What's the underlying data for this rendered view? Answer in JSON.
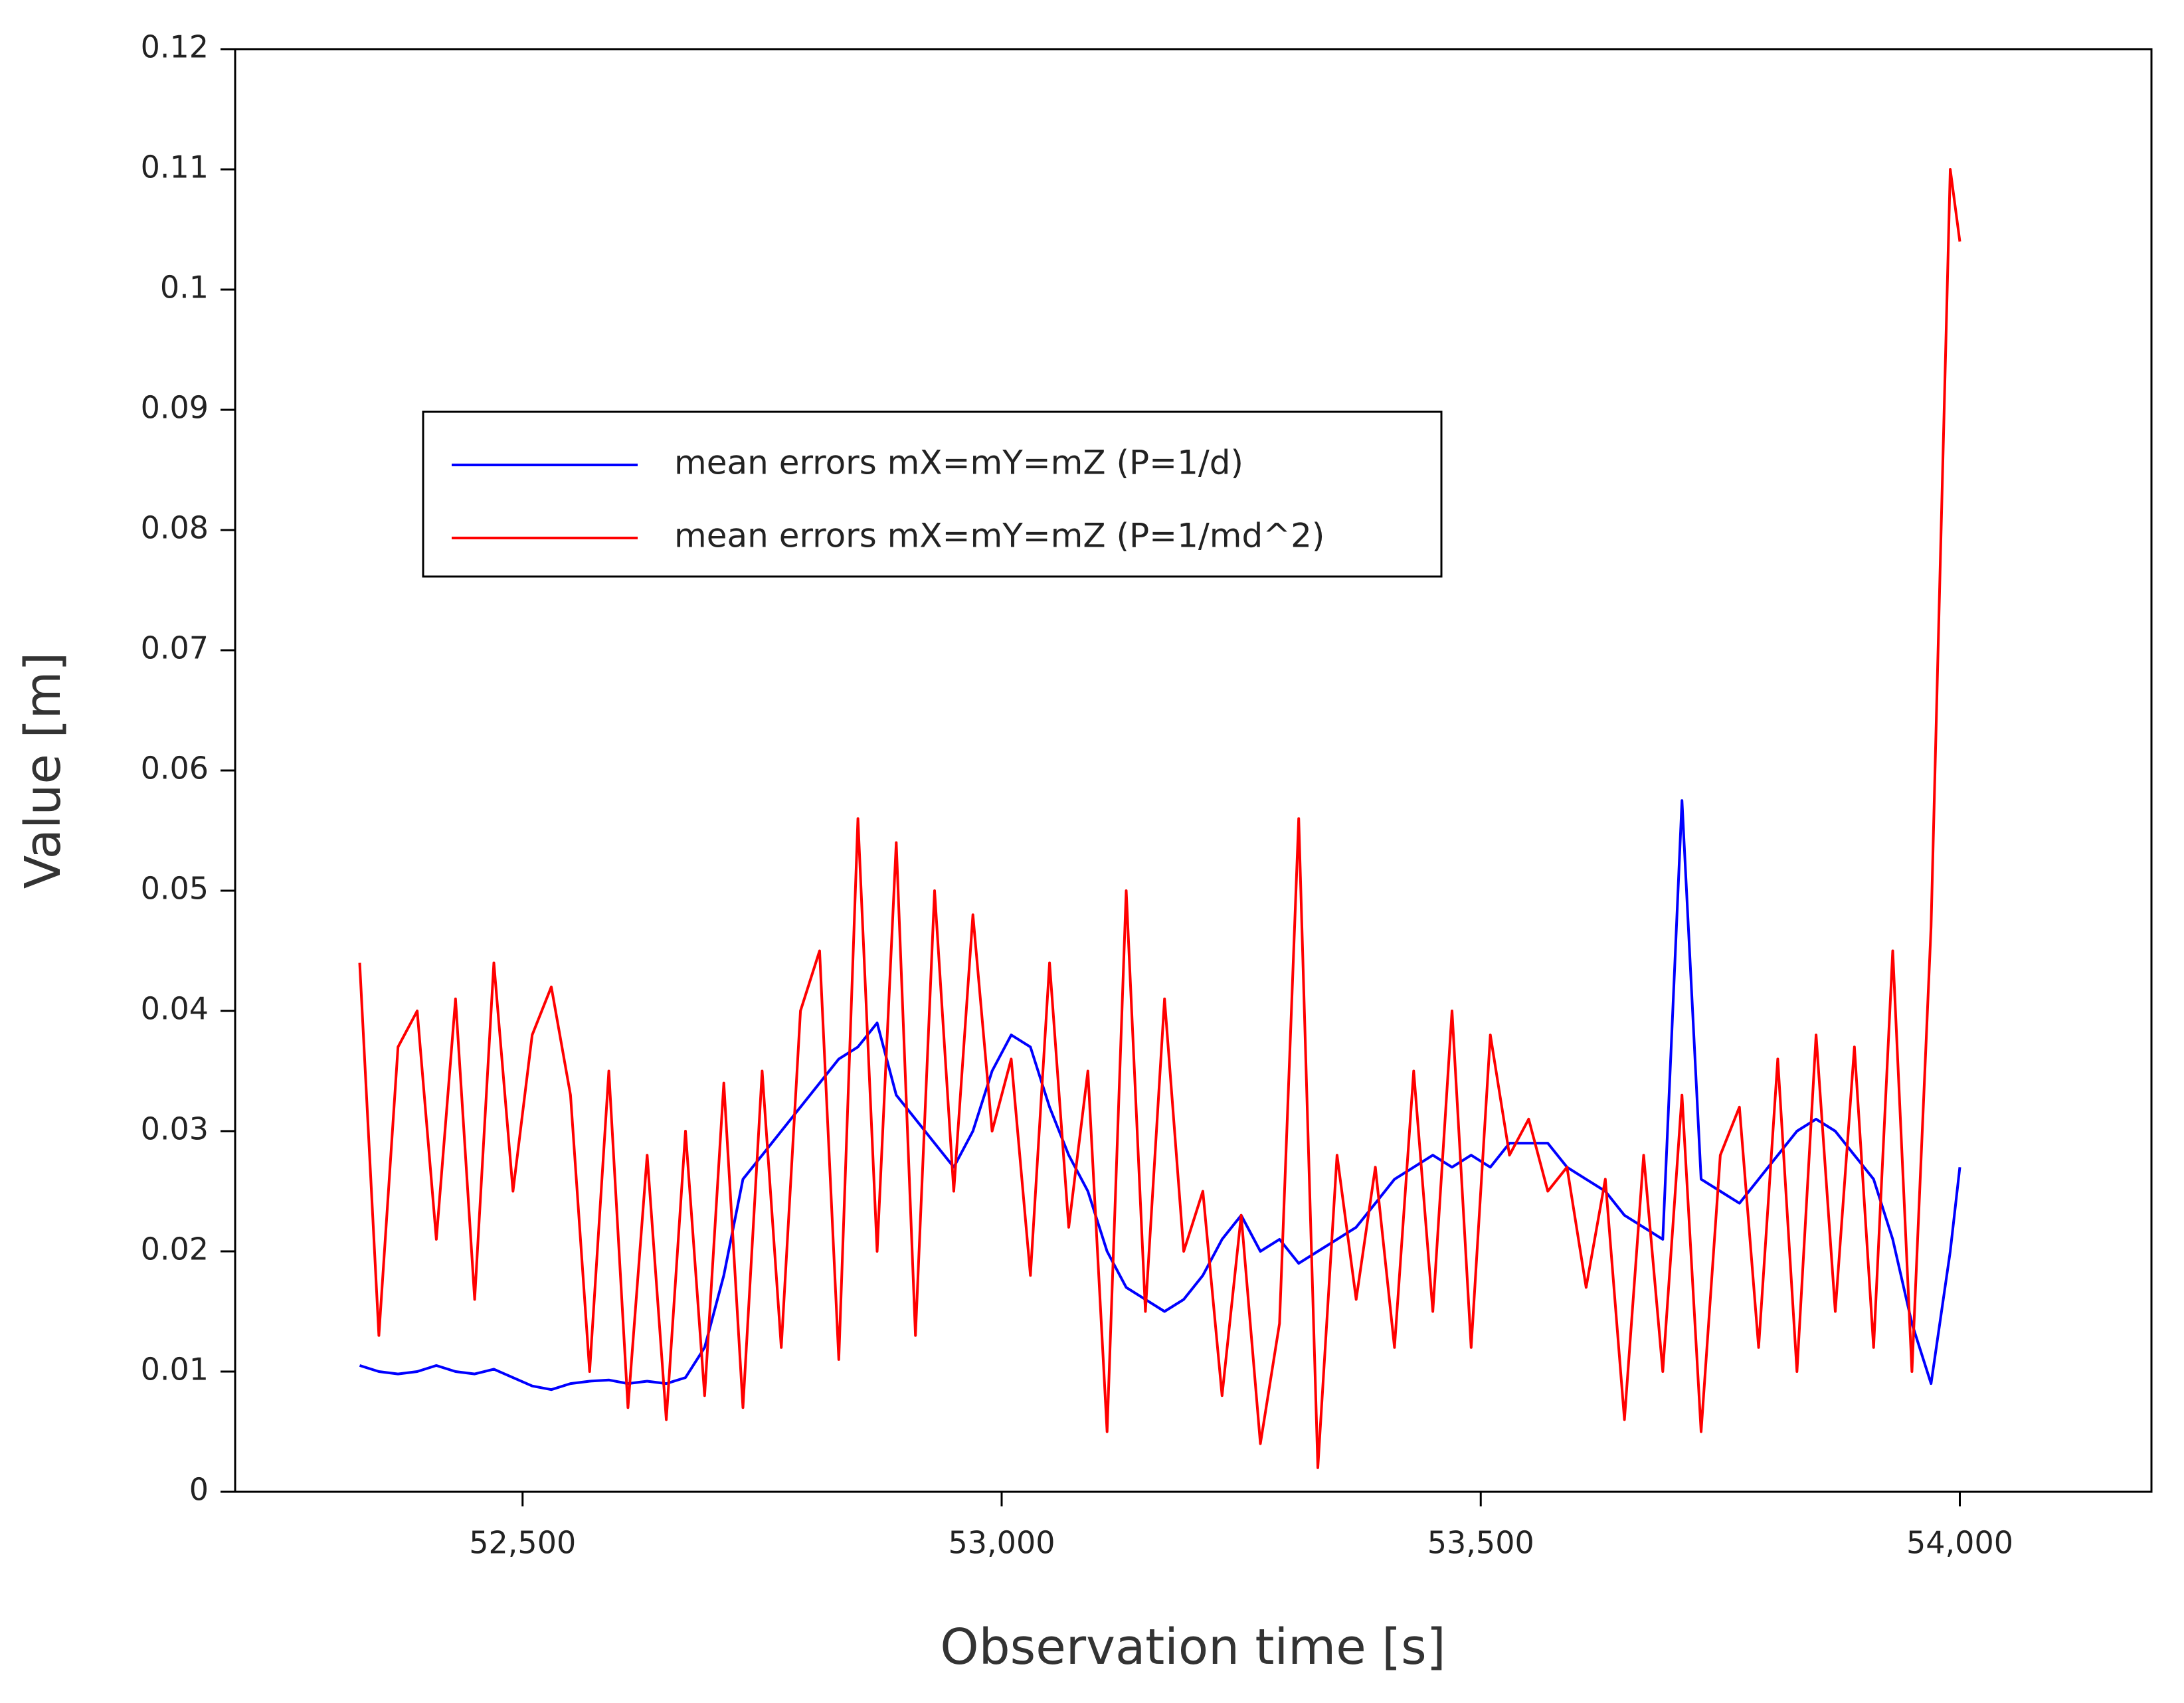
{
  "chart_data": {
    "type": "line",
    "xlabel": "Observation time [s]",
    "ylabel": "Value [m]",
    "x": [
      52330,
      52350,
      52370,
      52390,
      52410,
      52430,
      52450,
      52470,
      52490,
      52510,
      52530,
      52550,
      52570,
      52590,
      52610,
      52630,
      52650,
      52670,
      52690,
      52710,
      52730,
      52750,
      52770,
      52790,
      52810,
      52830,
      52850,
      52870,
      52890,
      52910,
      52930,
      52950,
      52970,
      52990,
      53010,
      53030,
      53050,
      53070,
      53090,
      53110,
      53130,
      53150,
      53170,
      53190,
      53210,
      53230,
      53250,
      53270,
      53290,
      53310,
      53330,
      53350,
      53370,
      53390,
      53410,
      53430,
      53450,
      53470,
      53490,
      53510,
      53530,
      53550,
      53570,
      53590,
      53610,
      53630,
      53650,
      53670,
      53690,
      53710,
      53730,
      53750,
      53770,
      53790,
      53810,
      53830,
      53850,
      53870,
      53890,
      53910,
      53930,
      53950,
      53970,
      53990,
      54000
    ],
    "series": [
      {
        "name": "mean errors mX=mY=mZ (P=1/d)",
        "color": "#0000ff",
        "values": [
          0.0105,
          0.01,
          0.0098,
          0.01,
          0.0105,
          0.01,
          0.0098,
          0.0102,
          0.0095,
          0.0088,
          0.0085,
          0.009,
          0.0092,
          0.0093,
          0.009,
          0.0092,
          0.009,
          0.0095,
          0.012,
          0.018,
          0.026,
          0.028,
          0.03,
          0.032,
          0.034,
          0.036,
          0.037,
          0.039,
          0.033,
          0.031,
          0.029,
          0.027,
          0.03,
          0.035,
          0.038,
          0.037,
          0.032,
          0.028,
          0.025,
          0.02,
          0.017,
          0.016,
          0.015,
          0.016,
          0.018,
          0.021,
          0.023,
          0.02,
          0.021,
          0.019,
          0.02,
          0.021,
          0.022,
          0.024,
          0.026,
          0.027,
          0.028,
          0.027,
          0.028,
          0.027,
          0.029,
          0.029,
          0.029,
          0.027,
          0.026,
          0.025,
          0.023,
          0.022,
          0.021,
          0.0575,
          0.026,
          0.025,
          0.024,
          0.026,
          0.028,
          0.03,
          0.031,
          0.03,
          0.028,
          0.026,
          0.021,
          0.014,
          0.009,
          0.02,
          0.027
        ]
      },
      {
        "name": "mean errors mX=mY=mZ (P=1/md^2)",
        "color": "#ff0000",
        "values": [
          0.044,
          0.013,
          0.037,
          0.04,
          0.021,
          0.041,
          0.016,
          0.044,
          0.025,
          0.038,
          0.042,
          0.033,
          0.01,
          0.035,
          0.007,
          0.028,
          0.006,
          0.03,
          0.008,
          0.034,
          0.007,
          0.035,
          0.012,
          0.04,
          0.045,
          0.011,
          0.056,
          0.02,
          0.054,
          0.013,
          0.05,
          0.025,
          0.048,
          0.03,
          0.036,
          0.018,
          0.044,
          0.022,
          0.035,
          0.005,
          0.05,
          0.015,
          0.041,
          0.02,
          0.025,
          0.008,
          0.023,
          0.004,
          0.014,
          0.056,
          0.002,
          0.028,
          0.016,
          0.027,
          0.012,
          0.035,
          0.015,
          0.04,
          0.012,
          0.038,
          0.028,
          0.031,
          0.025,
          0.027,
          0.017,
          0.026,
          0.006,
          0.028,
          0.01,
          0.033,
          0.005,
          0.028,
          0.032,
          0.012,
          0.036,
          0.01,
          0.038,
          0.015,
          0.037,
          0.012,
          0.045,
          0.01,
          0.047,
          0.11,
          0.104
        ]
      }
    ],
    "xlim": [
      52200,
      54200
    ],
    "xticks": [
      {
        "value": 52500,
        "label": "52,500"
      },
      {
        "value": 53000,
        "label": "53,000"
      },
      {
        "value": 53500,
        "label": "53,500"
      },
      {
        "value": 54000,
        "label": "54,000"
      }
    ],
    "ylim": [
      0,
      0.12
    ],
    "yticks": [
      0,
      0.01,
      0.02,
      0.03,
      0.04,
      0.05,
      0.06,
      0.07,
      0.08,
      0.09,
      0.1,
      0.11,
      0.12
    ]
  }
}
